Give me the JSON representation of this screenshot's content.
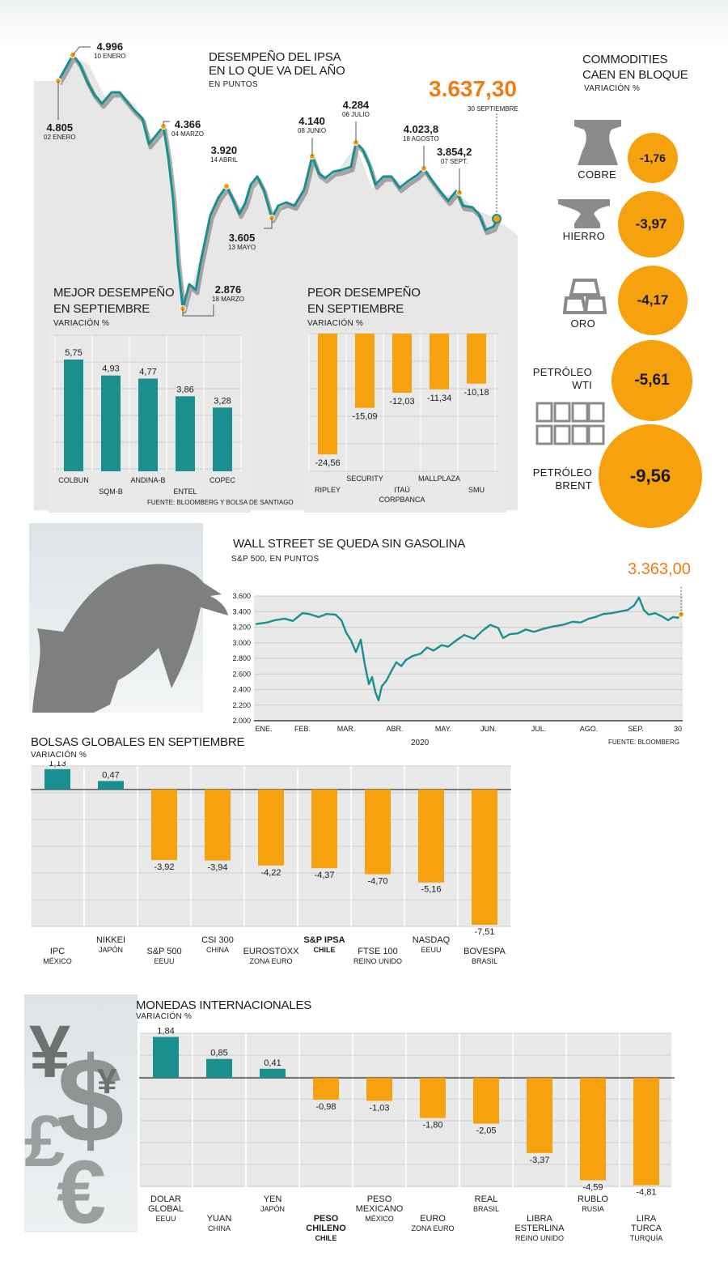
{
  "ipsa": {
    "title_line1": "DESEMPEÑO DEL IPSA",
    "title_line2": "EN LO QUE VA DEL AÑO",
    "subtitle": "EN PUNTOS",
    "last_value": "3.637,30",
    "last_date": "30 SEPTIEMBRE",
    "annotations": [
      {
        "value": "4.805",
        "date": "02 ENERO"
      },
      {
        "value": "4.996",
        "date": "10 ENERO"
      },
      {
        "value": "4.366",
        "date": "04 MARZO"
      },
      {
        "value": "2.876",
        "date": "18 MARZO"
      },
      {
        "value": "3.920",
        "date": "14 ABRIL"
      },
      {
        "value": "3.605",
        "date": "13 MAYO"
      },
      {
        "value": "4.140",
        "date": "08 JUNIO"
      },
      {
        "value": "4.284",
        "date": "06 JULIO"
      },
      {
        "value": "4.023,8",
        "date": "18 AGOSTO"
      },
      {
        "value": "3.854,2",
        "date": "07 SEPT."
      }
    ]
  },
  "mejor": {
    "title_line1": "MEJOR DESEMPEÑO",
    "title_line2": "EN SEPTIEMBRE",
    "subtitle": "VARIACIÓN %"
  },
  "peor": {
    "title_line1": "PEOR DESEMPEÑO",
    "title_line2": "EN SEPTIEMBRE",
    "subtitle": "VARIACIÓN %"
  },
  "source1": "FUENTE: BLOOMBERG Y BOLSA DE SANTIAGO",
  "commodities": {
    "title_line1": "COMMODITIES",
    "title_line2": "CAEN EN BLOQUE",
    "subtitle": "VARIACIÓN %",
    "items": [
      {
        "label": "COBRE",
        "value": "-1,76",
        "icon": "copper-icon"
      },
      {
        "label": "HIERRO",
        "value": "-3,97",
        "icon": "anvil-icon"
      },
      {
        "label": "ORO",
        "value": "-4,17",
        "icon": "gold-bars-icon"
      },
      {
        "label_line1": "PETRÓLEO",
        "label_line2": "WTI",
        "value": "-5,61",
        "icon": "barrels-icon"
      },
      {
        "label_line1": "PETRÓLEO",
        "label_line2": "BRENT",
        "value": "-9,56"
      }
    ]
  },
  "sp500": {
    "title": "WALL STREET SE QUEDA SIN GASOLINA",
    "subtitle": "S&P 500, EN PUNTOS",
    "last_value": "3.363,00",
    "year": "2020",
    "source": "FUENTE: BLOOMBERG"
  },
  "bolsas": {
    "title": "BOLSAS GLOBALES EN SEPTIEMBRE",
    "subtitle": "VARIACIÓN %"
  },
  "monedas": {
    "title": "MONEDAS INTERNACIONALES",
    "subtitle": "VARIACIÓN %"
  },
  "colors": {
    "teal": "#1b8f8e",
    "orange": "#f6a10e",
    "accent_text": "#ef7d14",
    "panel": "#e9e9e9"
  },
  "chart_data": [
    {
      "id": "ipsa",
      "type": "line",
      "title": "DESEMPEÑO DEL IPSA EN LO QUE VA DEL AÑO",
      "ylabel": "EN PUNTOS",
      "x": [
        "02-01",
        "10-01",
        "04-03",
        "18-03",
        "14-04",
        "13-05",
        "08-06",
        "06-07",
        "18-08",
        "07-09",
        "30-09"
      ],
      "values": [
        4805,
        4996,
        4366,
        2876,
        3920,
        3605,
        4140,
        4284,
        4023.8,
        3854.2,
        3637.3
      ],
      "ylim": [
        2800,
        5050
      ]
    },
    {
      "id": "mejor",
      "type": "bar",
      "title": "MEJOR DESEMPEÑO EN SEPTIEMBRE",
      "ylabel": "VARIACIÓN %",
      "categories": [
        "COLBUN",
        "SQM-B",
        "ANDINA-B",
        "ENTEL",
        "COPEC"
      ],
      "values": [
        5.75,
        4.93,
        4.77,
        3.86,
        3.28
      ],
      "labels": [
        "5,75",
        "4,93",
        "4,77",
        "3,86",
        "3,28"
      ],
      "ylim": [
        0,
        7
      ]
    },
    {
      "id": "peor",
      "type": "bar",
      "title": "PEOR DESEMPEÑO EN SEPTIEMBRE",
      "ylabel": "VARIACIÓN %",
      "categories": [
        "RIPLEY",
        "SECURITY",
        "ITAÚ CORPBANCA",
        "MALLPLAZA",
        "SMU"
      ],
      "values": [
        -24.56,
        -15.09,
        -12.03,
        -11.34,
        -10.18
      ],
      "labels": [
        "-24,56",
        "-15,09",
        "-12,03",
        "-11,34",
        "-10,18"
      ],
      "ylim": [
        -28,
        0
      ]
    },
    {
      "id": "commodities",
      "type": "bar",
      "title": "COMMODITIES CAEN EN BLOQUE",
      "categories": [
        "COBRE",
        "HIERRO",
        "ORO",
        "PETRÓLEO WTI",
        "PETRÓLEO BRENT"
      ],
      "values": [
        -1.76,
        -3.97,
        -4.17,
        -5.61,
        -9.56
      ]
    },
    {
      "id": "sp500",
      "type": "line",
      "title": "WALL STREET SE QUEDA SIN GASOLINA",
      "ylabel": "S&P 500, EN PUNTOS",
      "xlabel": "2020",
      "tick_labels_x": [
        "ENE.",
        "FEB.",
        "MAR.",
        "ABR.",
        "MAY.",
        "JUN.",
        "JUL.",
        "AGO.",
        "SEP.",
        "30"
      ],
      "tick_labels_y": [
        "2.000",
        "2.200",
        "2.400",
        "2.600",
        "2.800",
        "3.000",
        "3.200",
        "3.400",
        "3.600"
      ],
      "x": [
        "ENE.",
        "FEB.",
        "MAR. (inicio)",
        "MAR. (mín.)",
        "ABR.",
        "MAY.",
        "JUN.",
        "JUL.",
        "AGO.",
        "SEP. (máx.)",
        "30"
      ],
      "values": [
        3240,
        3380,
        3130,
        2240,
        2780,
        2940,
        3100,
        3180,
        3320,
        3580,
        3363
      ],
      "ylim": [
        2000,
        3600
      ],
      "grid": true
    },
    {
      "id": "bolsas",
      "type": "bar",
      "title": "BOLSAS GLOBALES EN SEPTIEMBRE",
      "ylabel": "VARIACIÓN %",
      "categories": [
        {
          "name": "IPC",
          "country": "MÉXICO"
        },
        {
          "name": "NIKKEI",
          "country": "JAPÓN"
        },
        {
          "name": "S&P 500",
          "country": "EEUU"
        },
        {
          "name": "CSI 300",
          "country": "CHINA"
        },
        {
          "name": "EUROSTOXX",
          "country": "ZONA EURO"
        },
        {
          "name": "S&P IPSA",
          "country": "CHILE"
        },
        {
          "name": "FTSE 100",
          "country": "REINO UNIDO"
        },
        {
          "name": "NASDAQ",
          "country": "EEUU"
        },
        {
          "name": "BOVESPA",
          "country": "BRASIL"
        }
      ],
      "values": [
        1.13,
        0.47,
        -3.92,
        -3.94,
        -4.22,
        -4.37,
        -4.7,
        -5.16,
        -7.51
      ],
      "labels": [
        "1,13",
        "0,47",
        "-3,92",
        "-3,94",
        "-4,22",
        "-4,37",
        "-4,70",
        "-5,16",
        "-7,51"
      ],
      "ylim": [
        -7.6,
        1.3
      ]
    },
    {
      "id": "monedas",
      "type": "bar",
      "title": "MONEDAS INTERNACIONALES",
      "ylabel": "VARIACIÓN %",
      "categories": [
        {
          "name": "DOLAR GLOBAL",
          "country": "EEUU"
        },
        {
          "name": "YUAN",
          "country": "CHINA"
        },
        {
          "name": "YEN",
          "country": "JAPÓN"
        },
        {
          "name": "PESO CHILENO",
          "country": "CHILE"
        },
        {
          "name": "PESO MEXICANO",
          "country": "MÉXICO"
        },
        {
          "name": "EURO",
          "country": "ZONA EURO"
        },
        {
          "name": "REAL",
          "country": "BRASIL"
        },
        {
          "name": "LIBRA ESTERLINA",
          "country": "REINO UNIDO"
        },
        {
          "name": "RUBLO",
          "country": "RUSIA"
        },
        {
          "name": "LIRA TURCA",
          "country": "TURQUÍA"
        }
      ],
      "values": [
        1.84,
        0.85,
        0.41,
        -0.98,
        -1.03,
        -1.8,
        -2.05,
        -3.37,
        -4.59,
        -4.81
      ],
      "labels": [
        "1,84",
        "0,85",
        "0,41",
        "-0,98",
        "-1,03",
        "-1,80",
        "-2,05",
        "-3,37",
        "-4,59",
        "-4,81"
      ],
      "ylim": [
        -4.9,
        2.0
      ]
    }
  ]
}
